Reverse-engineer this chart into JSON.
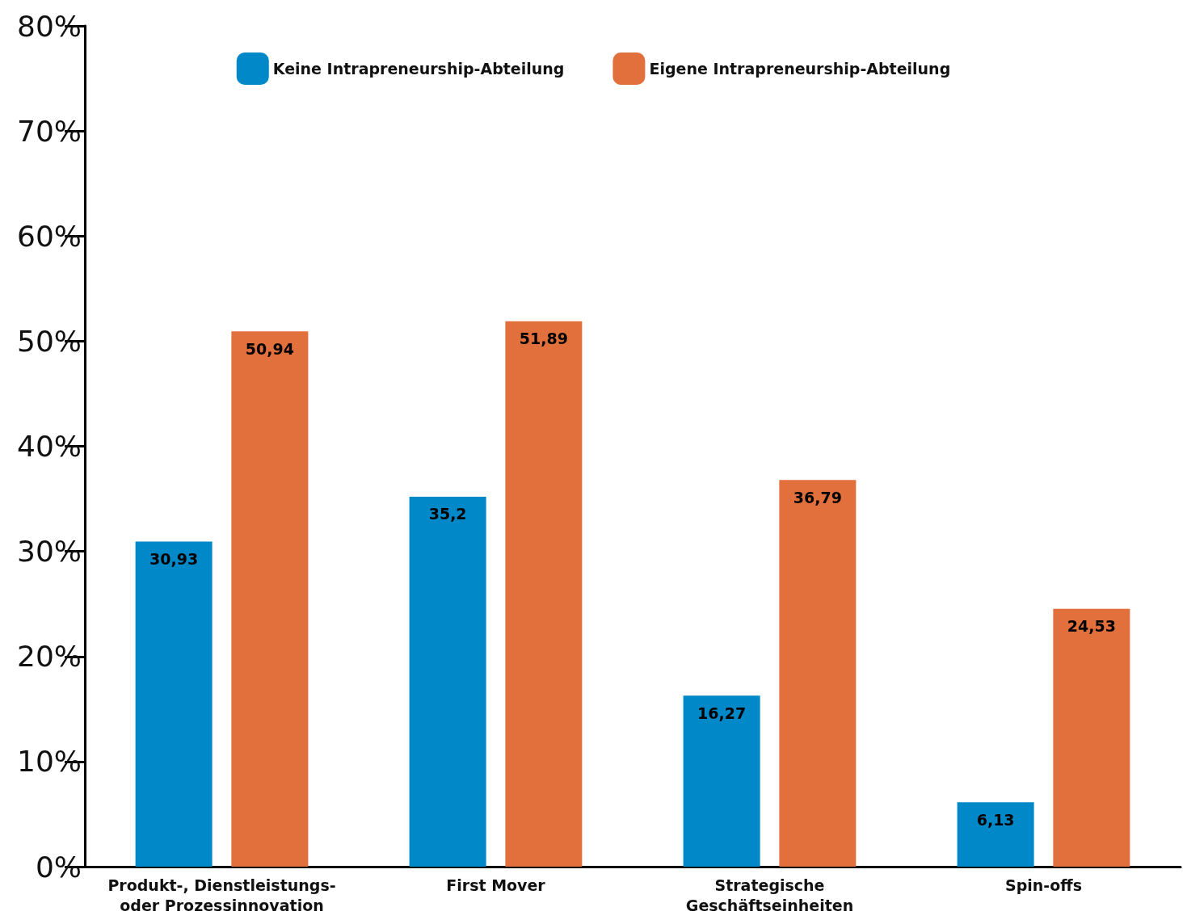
{
  "chart_data": {
    "type": "bar",
    "categories": [
      "Produkt-, Dienstleistungs-\noder Prozessinnovation",
      "First Mover",
      "Strategische\nGeschäftseinheiten",
      "Spin-offs"
    ],
    "series": [
      {
        "name": "Keine Intrapreneurship-Abteilung",
        "color": "#0088c8",
        "values": [
          30.93,
          35.2,
          16.27,
          6.13
        ],
        "value_labels": [
          "30,93",
          "35,2",
          "16,27",
          "6,13"
        ]
      },
      {
        "name": "Eigene Intrapreneurship-Abteilung",
        "color": "#e2703c",
        "values": [
          50.94,
          51.89,
          36.79,
          24.53
        ],
        "value_labels": [
          "50,94",
          "51,89",
          "36,79",
          "24,53"
        ]
      }
    ],
    "ylim": [
      0,
      80
    ],
    "yticks": [
      {
        "value": 0,
        "label": "0%"
      },
      {
        "value": 10,
        "label": "10%"
      },
      {
        "value": 20,
        "label": "20%"
      },
      {
        "value": 30,
        "label": "30%"
      },
      {
        "value": 40,
        "label": "40%"
      },
      {
        "value": 50,
        "label": "50%"
      },
      {
        "value": 60,
        "label": "60%"
      },
      {
        "value": 70,
        "label": "70%"
      },
      {
        "value": 80,
        "label": "80%"
      }
    ],
    "legend": "top",
    "grid": false
  }
}
